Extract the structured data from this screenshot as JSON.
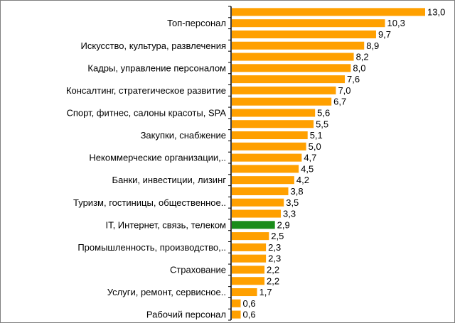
{
  "chart_data": {
    "type": "bar",
    "orientation": "horizontal",
    "title": "",
    "xlabel": "",
    "ylabel": "",
    "grid": false,
    "legend": "none",
    "xlim": [
      0,
      13.0
    ],
    "colors": {
      "default": "#ffa000",
      "highlight": "#1a8c1a"
    },
    "highlight_index": 19,
    "categories": [
      "",
      "Топ-персонал",
      "",
      "Искусство, культура, развлечения",
      "",
      "Кадры, управление персоналом",
      "",
      "Консалтинг, стратегическое развитие",
      "",
      "Спорт, фитнес, салоны красоты, SPA",
      "",
      "Закупки, снабжение",
      "",
      "Некоммерческие организации,..",
      "",
      "Банки, инвестиции, лизинг",
      "",
      "Туризм, гостиницы, общественное..",
      "",
      "IT, Интернет, связь, телеком",
      "",
      "Промышленность, производство,..",
      "",
      "Страхование",
      "",
      "Услуги, ремонт, сервисное..",
      "",
      "Рабочий персонал"
    ],
    "values": [
      13.0,
      10.3,
      9.7,
      8.9,
      8.2,
      8.0,
      7.6,
      7.0,
      6.7,
      5.6,
      5.5,
      5.1,
      5.0,
      4.7,
      4.5,
      4.2,
      3.8,
      3.5,
      3.3,
      2.9,
      2.5,
      2.3,
      2.3,
      2.2,
      2.2,
      1.7,
      0.6,
      0.6
    ],
    "value_labels": [
      "13,0",
      "10,3",
      "9,7",
      "8,9",
      "8,2",
      "8,0",
      "7,6",
      "7,0",
      "6,7",
      "5,6",
      "5,5",
      "5,1",
      "5,0",
      "4,7",
      "4,5",
      "4,2",
      "3,8",
      "3,5",
      "3,3",
      "2,9",
      "2,5",
      "2,3",
      "2,3",
      "2,2",
      "2,2",
      "1,7",
      "0,6",
      "0,6"
    ]
  }
}
